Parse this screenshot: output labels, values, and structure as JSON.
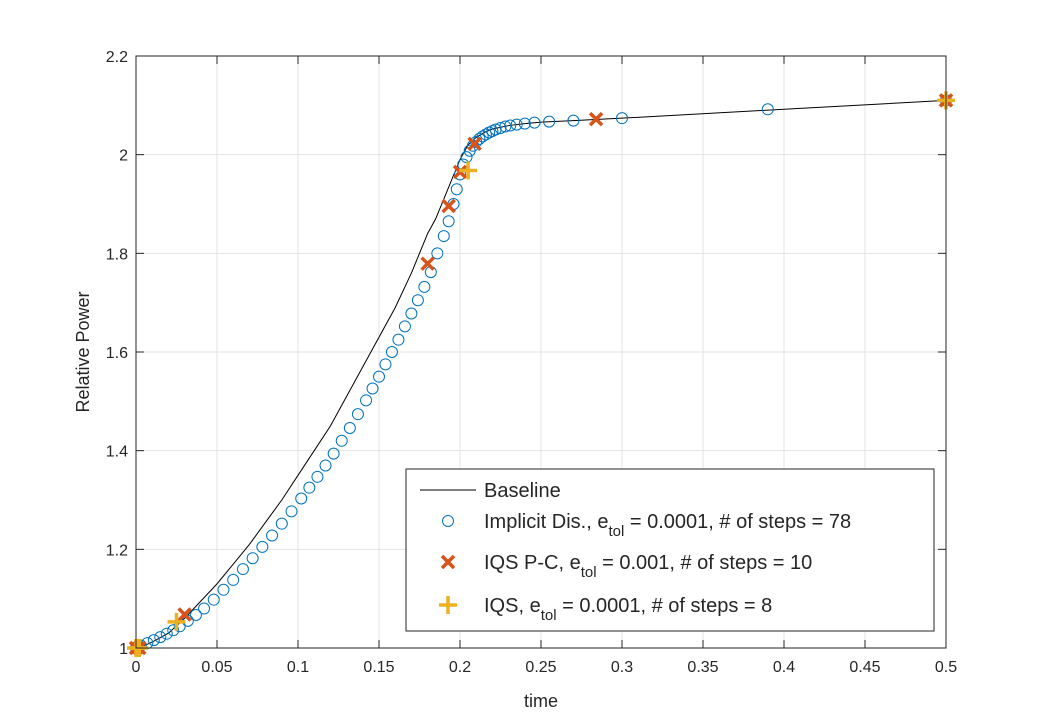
{
  "chart_data": {
    "type": "line",
    "xlabel": "time",
    "ylabel": "Relative Power",
    "xlim": [
      0,
      0.5
    ],
    "ylim": [
      1,
      2.2
    ],
    "xticks": [
      0,
      0.05,
      0.1,
      0.15,
      0.2,
      0.25,
      0.3,
      0.35,
      0.4,
      0.45,
      0.5
    ],
    "xtick_labels": [
      "0",
      "0.05",
      "0.1",
      "0.15",
      "0.2",
      "0.25",
      "0.3",
      "0.35",
      "0.4",
      "0.45",
      "0.5"
    ],
    "yticks": [
      1,
      1.2,
      1.4,
      1.6,
      1.8,
      2,
      2.2
    ],
    "ytick_labels": [
      "1",
      "1.2",
      "1.4",
      "1.6",
      "1.8",
      "2",
      "2.2"
    ],
    "grid": true,
    "legend_position": "bottom-right",
    "series": [
      {
        "name": "Baseline",
        "marker": "line",
        "color": "#000000",
        "x": [
          0,
          0.005,
          0.01,
          0.02,
          0.03,
          0.04,
          0.05,
          0.06,
          0.07,
          0.08,
          0.09,
          0.1,
          0.11,
          0.12,
          0.13,
          0.14,
          0.15,
          0.16,
          0.17,
          0.18,
          0.185,
          0.19,
          0.195,
          0.2,
          0.205,
          0.21,
          0.215,
          0.22,
          0.23,
          0.24,
          0.25,
          0.27,
          0.3,
          0.4,
          0.5
        ],
        "y": [
          1.0,
          1.005,
          1.012,
          1.03,
          1.06,
          1.095,
          1.13,
          1.17,
          1.21,
          1.255,
          1.3,
          1.35,
          1.4,
          1.45,
          1.51,
          1.57,
          1.63,
          1.69,
          1.76,
          1.84,
          1.87,
          1.91,
          1.95,
          1.99,
          2.02,
          2.035,
          2.045,
          2.052,
          2.059,
          2.063,
          2.066,
          2.069,
          2.074,
          2.092,
          2.11
        ]
      },
      {
        "name_main": "Implicit Dis., e",
        "name_sub": "tol",
        "name_rest": " = 0.0001, # of steps = 78",
        "marker": "circle",
        "color": "#0072BD",
        "x": [
          0,
          0.003,
          0.007,
          0.011,
          0.015,
          0.019,
          0.023,
          0.027,
          0.032,
          0.037,
          0.042,
          0.048,
          0.054,
          0.06,
          0.066,
          0.072,
          0.078,
          0.084,
          0.09,
          0.096,
          0.102,
          0.107,
          0.112,
          0.117,
          0.122,
          0.127,
          0.132,
          0.137,
          0.142,
          0.146,
          0.15,
          0.154,
          0.158,
          0.162,
          0.166,
          0.17,
          0.174,
          0.178,
          0.182,
          0.186,
          0.19,
          0.193,
          0.196,
          0.198,
          0.2,
          0.202,
          0.204,
          0.206,
          0.208,
          0.21,
          0.212,
          0.214,
          0.216,
          0.218,
          0.22,
          0.222,
          0.225,
          0.228,
          0.231,
          0.235,
          0.24,
          0.246,
          0.255,
          0.27,
          0.3,
          0.39,
          0.5
        ],
        "y": [
          1.0,
          1.005,
          1.01,
          1.016,
          1.022,
          1.029,
          1.036,
          1.044,
          1.055,
          1.067,
          1.08,
          1.098,
          1.118,
          1.138,
          1.16,
          1.182,
          1.205,
          1.228,
          1.252,
          1.277,
          1.303,
          1.325,
          1.347,
          1.37,
          1.394,
          1.42,
          1.446,
          1.474,
          1.502,
          1.526,
          1.55,
          1.575,
          1.6,
          1.625,
          1.652,
          1.678,
          1.705,
          1.732,
          1.762,
          1.8,
          1.835,
          1.865,
          1.9,
          1.93,
          1.96,
          1.98,
          1.995,
          2.008,
          2.018,
          2.026,
          2.032,
          2.037,
          2.041,
          2.045,
          2.048,
          2.051,
          2.054,
          2.057,
          2.059,
          2.061,
          2.063,
          2.065,
          2.067,
          2.069,
          2.074,
          2.092,
          2.11
        ]
      },
      {
        "name_main": "IQS P-C, e",
        "name_sub": "tol",
        "name_rest": " = 0.001, # of steps = 10",
        "marker": "x",
        "color": "#D95319",
        "x": [
          0,
          0.002,
          0.03,
          0.18,
          0.193,
          0.2,
          0.209,
          0.284,
          0.5
        ],
        "y": [
          1.0,
          1.0,
          1.068,
          1.779,
          1.896,
          1.965,
          2.022,
          2.072,
          2.11
        ]
      },
      {
        "name_main": "IQS, e",
        "name_sub": "tol",
        "name_rest": " = 0.0001, # of steps = 8",
        "marker": "plus",
        "color": "#EDB120",
        "x": [
          0,
          0.002,
          0.025,
          0.205,
          0.5
        ],
        "y": [
          1.0,
          1.0,
          1.053,
          1.968,
          2.11
        ]
      }
    ]
  }
}
